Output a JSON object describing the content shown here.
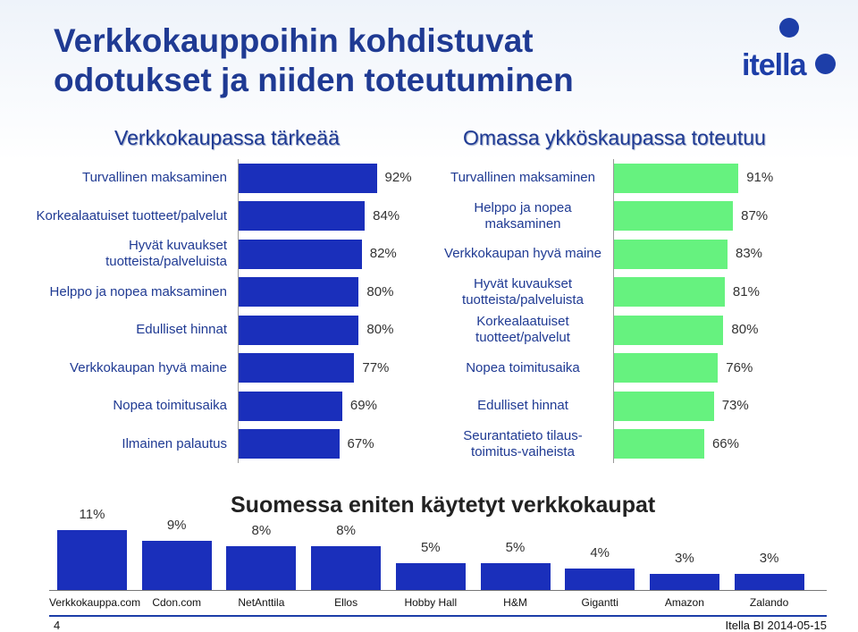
{
  "title": "Verkkokauppoihin kohdistuvat\nodotukset ja niiden toteutuminen",
  "logo": {
    "text": "itella"
  },
  "colors": {
    "blue": "#1a2fbb",
    "green": "#66f27f",
    "title": "#1f3a93"
  },
  "chart_data": [
    {
      "type": "bar",
      "orientation": "horizontal",
      "title": "Verkkokaupassa tärkeää",
      "categories": [
        "Turvallinen maksaminen",
        "Korkealaatuiset tuotteet/palvelut",
        "Hyvät kuvaukset tuotteista/palveluista",
        "Helppo ja nopea maksaminen",
        "Edulliset hinnat",
        "Verkkokaupan hyvä maine",
        "Nopea toimitusaika",
        "Ilmainen palautus"
      ],
      "values": [
        92,
        84,
        82,
        80,
        80,
        77,
        69,
        67
      ],
      "labels": [
        "92%",
        "84%",
        "82%",
        "80%",
        "80%",
        "77%",
        "69%",
        "67%"
      ],
      "color": "#1a2fbb"
    },
    {
      "type": "bar",
      "orientation": "horizontal",
      "title": "Omassa ykköskaupassa toteutuu",
      "categories": [
        "Turvallinen maksaminen",
        "Helppo ja nopea maksaminen",
        "Verkkokaupan hyvä maine",
        "Hyvät kuvaukset tuotteista/palveluista",
        "Korkealaatuiset tuotteet/palvelut",
        "Nopea toimitusaika",
        "Edulliset hinnat",
        "Seurantatieto tilaus-toimitus-vaiheista"
      ],
      "values": [
        91,
        87,
        83,
        81,
        80,
        76,
        73,
        66
      ],
      "labels": [
        "91%",
        "87%",
        "83%",
        "81%",
        "80%",
        "76%",
        "73%",
        "66%"
      ],
      "color": "#66f27f"
    },
    {
      "type": "bar",
      "orientation": "vertical",
      "title": "Suomessa eniten käytetyt verkkokaupat",
      "categories": [
        "Verkkokauppa.com",
        "Cdon.com",
        "NetAnttila",
        "Ellos",
        "Hobby Hall",
        "H&M",
        "Gigantti",
        "Amazon",
        "Zalando"
      ],
      "values": [
        11,
        9,
        8,
        8,
        5,
        5,
        4,
        3,
        3
      ],
      "labels": [
        "11%",
        "9%",
        "8%",
        "8%",
        "5%",
        "5%",
        "4%",
        "3%",
        "3%"
      ],
      "color": "#1a2fbb"
    }
  ],
  "footer": {
    "page": "4",
    "source": "Itella BI 2014-05-15"
  }
}
